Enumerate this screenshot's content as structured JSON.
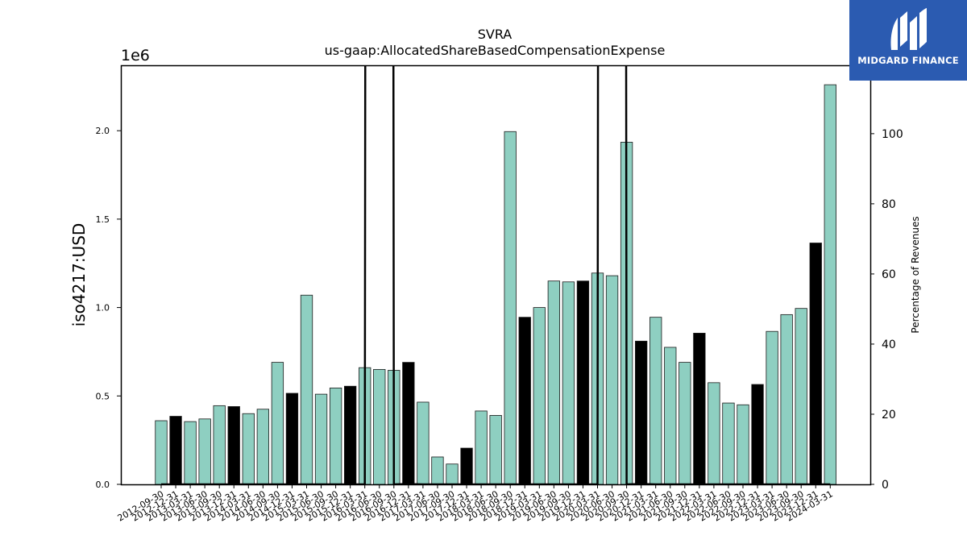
{
  "chart_data": {
    "type": "bar",
    "title": "SVRA",
    "subtitle": "us-gaap:AllocatedShareBasedCompensationExpense",
    "ylabel": "iso4217:USD",
    "y_multiplier_label": "1e6",
    "y2label": "Percentage of Revenues",
    "ylim": [
      0,
      2.37
    ],
    "y2lim": [
      0,
      119.5
    ],
    "yticks": [
      "0.0",
      "0.5",
      "1.0",
      "1.5",
      "2.0"
    ],
    "y2ticks": [
      "0",
      "20",
      "40",
      "60",
      "80",
      "100"
    ],
    "categories": [
      "2012-09-30",
      "2012-12-31",
      "2013-03-31",
      "2013-06-30",
      "2013-09-30",
      "2013-12-31",
      "2014-03-31",
      "2014-06-30",
      "2014-09-30",
      "2014-12-31",
      "2015-03-31",
      "2015-06-30",
      "2015-09-30",
      "2015-12-31",
      "2016-03-31",
      "2016-06-30",
      "2016-09-30",
      "2016-12-31",
      "2017-03-31",
      "2017-06-30",
      "2017-09-30",
      "2017-12-31",
      "2018-03-31",
      "2018-06-30",
      "2018-09-30",
      "2018-12-31",
      "2019-03-31",
      "2019-06-30",
      "2019-09-30",
      "2019-12-31",
      "2020-03-31",
      "2020-06-30",
      "2020-09-30",
      "2020-12-31",
      "2021-03-31",
      "2021-06-30",
      "2021-09-30",
      "2021-12-31",
      "2022-03-31",
      "2022-06-30",
      "2022-09-30",
      "2022-12-31",
      "2023-03-31",
      "2023-06-30",
      "2023-09-30",
      "2023-12-31",
      "2024-03-31"
    ],
    "values": [
      0.36,
      0.385,
      0.355,
      0.37,
      0.445,
      0.44,
      0.4,
      0.425,
      0.69,
      0.515,
      1.07,
      0.51,
      0.545,
      0.555,
      0.66,
      0.65,
      0.645,
      0.69,
      0.465,
      0.155,
      0.115,
      0.205,
      0.415,
      0.39,
      1.995,
      0.945,
      1.0,
      1.15,
      1.145,
      1.15,
      1.195,
      1.18,
      1.935,
      0.81,
      0.945,
      0.775,
      0.69,
      0.855,
      0.575,
      0.46,
      0.45,
      0.565,
      0.865,
      0.96,
      0.995,
      1.365,
      2.26
    ],
    "bar_color_types": [
      "q",
      "a",
      "q",
      "q",
      "q",
      "a",
      "q",
      "q",
      "q",
      "a",
      "q",
      "q",
      "q",
      "a",
      "q",
      "q",
      "q",
      "a",
      "q",
      "q",
      "q",
      "a",
      "q",
      "q",
      "q",
      "a",
      "q",
      "q",
      "q",
      "a",
      "q",
      "q",
      "q",
      "a",
      "q",
      "q",
      "q",
      "a",
      "q",
      "q",
      "q",
      "a",
      "q",
      "q",
      "q",
      "a",
      "q"
    ],
    "percentage_line": [
      0,
      0,
      0,
      0,
      0,
      0,
      0,
      0,
      0,
      0,
      0,
      0,
      0,
      0,
      0,
      3800,
      0,
      0.1,
      0,
      0,
      0,
      0,
      0,
      0,
      0,
      0,
      0,
      0,
      0,
      0,
      0,
      3800,
      0,
      0.1,
      0,
      0,
      0,
      0,
      0,
      0,
      0,
      0,
      0,
      0,
      0,
      0,
      0
    ],
    "colors": {
      "quarterly": "#8ecfc1",
      "annual": "#000000",
      "edge": "#1a1a1a",
      "line": "#000000"
    }
  },
  "logo": {
    "text": "MIDGARD FINANCE",
    "bg_color": "#2b5bb1"
  }
}
